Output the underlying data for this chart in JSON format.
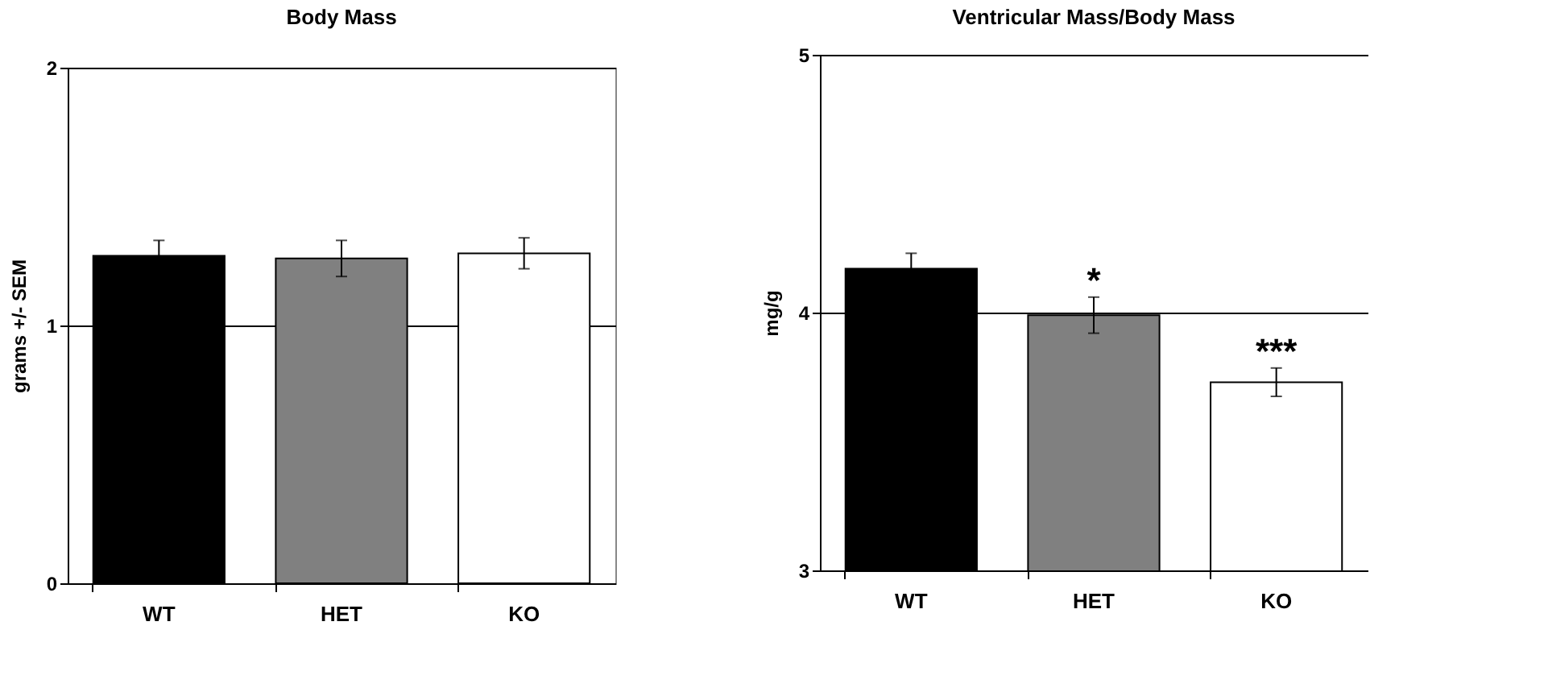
{
  "chart_data": [
    {
      "type": "bar",
      "title": "Body Mass",
      "ylabel": "grams +/- SEM",
      "categories": [
        "WT",
        "HET",
        "KO"
      ],
      "values": [
        1.27,
        1.26,
        1.28
      ],
      "errors": [
        0.06,
        0.07,
        0.06
      ],
      "colors": [
        "#000000",
        "#808080",
        "#ffffff"
      ],
      "ylim": [
        0,
        2
      ],
      "yticks": [
        0,
        1,
        2
      ],
      "grid": "y"
    },
    {
      "type": "bar",
      "title": "Ventricular Mass/Body Mass",
      "ylabel": "mg/g",
      "categories": [
        "WT",
        "HET",
        "KO"
      ],
      "values": [
        4.17,
        3.99,
        3.73
      ],
      "errors": [
        0.06,
        0.07,
        0.055
      ],
      "colors": [
        "#000000",
        "#808080",
        "#ffffff"
      ],
      "ylim": [
        3,
        5
      ],
      "yticks": [
        3,
        4,
        5
      ],
      "grid": "y",
      "annotations": [
        {
          "text": "*",
          "x": "HET",
          "y": 4.06
        },
        {
          "text": "***",
          "x": "KO",
          "y": 3.785
        }
      ]
    }
  ]
}
